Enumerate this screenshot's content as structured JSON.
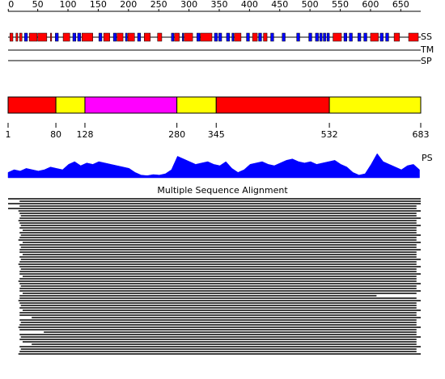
{
  "ruler": {
    "ticks": [
      0,
      50,
      100,
      150,
      200,
      250,
      300,
      350,
      400,
      450,
      500,
      550,
      600,
      650
    ],
    "length": 683
  },
  "tracks": {
    "ss": "SS",
    "tm": "TM",
    "sp": "SP",
    "ps": "PS"
  },
  "ss": {
    "helix_color": "#ff0000",
    "strand_color": "#0000ff",
    "helices": [
      [
        4,
        9
      ],
      [
        14,
        17
      ],
      [
        20,
        24
      ],
      [
        36,
        49
      ],
      [
        50,
        65
      ],
      [
        71,
        73
      ],
      [
        92,
        103
      ],
      [
        123,
        141
      ],
      [
        159,
        169
      ],
      [
        181,
        191
      ],
      [
        199,
        210
      ],
      [
        226,
        236
      ],
      [
        248,
        255
      ],
      [
        276,
        284
      ],
      [
        292,
        306
      ],
      [
        319,
        338
      ],
      [
        375,
        386
      ],
      [
        405,
        413
      ],
      [
        423,
        429
      ],
      [
        538,
        552
      ],
      [
        600,
        613
      ],
      [
        639,
        648
      ],
      [
        663,
        679
      ]
    ],
    "strands": [
      [
        28,
        33
      ],
      [
        79,
        84
      ],
      [
        108,
        113
      ],
      [
        116,
        121
      ],
      [
        151,
        156
      ],
      [
        175,
        180
      ],
      [
        195,
        198
      ],
      [
        215,
        220
      ],
      [
        271,
        275
      ],
      [
        289,
        291
      ],
      [
        313,
        318
      ],
      [
        342,
        347
      ],
      [
        349,
        354
      ],
      [
        362,
        367
      ],
      [
        371,
        374
      ],
      [
        395,
        400
      ],
      [
        415,
        420
      ],
      [
        435,
        440
      ],
      [
        454,
        459
      ],
      [
        478,
        483
      ],
      [
        498,
        503
      ],
      [
        509,
        514
      ],
      [
        516,
        520
      ],
      [
        522,
        526
      ],
      [
        528,
        532
      ],
      [
        556,
        561
      ],
      [
        565,
        570
      ],
      [
        579,
        584
      ],
      [
        589,
        594
      ],
      [
        616,
        621
      ],
      [
        625,
        630
      ]
    ]
  },
  "domains": {
    "boundaries": [
      1,
      80,
      128,
      280,
      345,
      532,
      683
    ],
    "colors": [
      "#ff0000",
      "#ffff00",
      "#ff00ff",
      "#ffff00",
      "#ff0000",
      "#ffff00"
    ]
  },
  "ps": {
    "step": 10,
    "color": "#0000ff",
    "values": [
      0.2,
      0.3,
      0.25,
      0.35,
      0.3,
      0.25,
      0.3,
      0.4,
      0.35,
      0.3,
      0.5,
      0.6,
      0.45,
      0.55,
      0.5,
      0.6,
      0.55,
      0.5,
      0.45,
      0.4,
      0.35,
      0.2,
      0.1,
      0.08,
      0.12,
      0.1,
      0.15,
      0.3,
      0.8,
      0.7,
      0.6,
      0.5,
      0.55,
      0.6,
      0.5,
      0.45,
      0.6,
      0.35,
      0.2,
      0.3,
      0.5,
      0.55,
      0.6,
      0.5,
      0.45,
      0.55,
      0.65,
      0.7,
      0.6,
      0.55,
      0.6,
      0.5,
      0.55,
      0.6,
      0.65,
      0.5,
      0.4,
      0.2,
      0.1,
      0.15,
      0.5,
      0.9,
      0.6,
      0.5,
      0.4,
      0.3,
      0.45,
      0.5,
      0.3
    ]
  },
  "alignment": {
    "title": "Multiple Sequence Alignment",
    "rows": [
      [
        1,
        683
      ],
      [
        20,
        683
      ],
      [
        1,
        683
      ],
      [
        20,
        676
      ],
      [
        1,
        676
      ],
      [
        18,
        683
      ],
      [
        20,
        676
      ],
      [
        22,
        676
      ],
      [
        20,
        683
      ],
      [
        18,
        676
      ],
      [
        20,
        676
      ],
      [
        22,
        683
      ],
      [
        20,
        676
      ],
      [
        25,
        676
      ],
      [
        20,
        676
      ],
      [
        22,
        683
      ],
      [
        20,
        676
      ],
      [
        18,
        676
      ],
      [
        25,
        683
      ],
      [
        20,
        676
      ],
      [
        22,
        676
      ],
      [
        20,
        683
      ],
      [
        20,
        676
      ],
      [
        25,
        676
      ],
      [
        20,
        676
      ],
      [
        22,
        683
      ],
      [
        20,
        676
      ],
      [
        18,
        676
      ],
      [
        20,
        683
      ],
      [
        22,
        676
      ],
      [
        20,
        676
      ],
      [
        20,
        683
      ],
      [
        25,
        676
      ],
      [
        20,
        676
      ],
      [
        18,
        676
      ],
      [
        20,
        683
      ],
      [
        22,
        676
      ],
      [
        20,
        676
      ],
      [
        20,
        683
      ],
      [
        25,
        676
      ],
      [
        20,
        610
      ],
      [
        20,
        676
      ],
      [
        18,
        683
      ],
      [
        20,
        676
      ],
      [
        22,
        676
      ],
      [
        20,
        676
      ],
      [
        25,
        683
      ],
      [
        20,
        676
      ],
      [
        20,
        676
      ],
      [
        40,
        683
      ],
      [
        20,
        676
      ],
      [
        22,
        676
      ],
      [
        20,
        676
      ],
      [
        18,
        683
      ],
      [
        20,
        676
      ],
      [
        60,
        676
      ],
      [
        20,
        676
      ],
      [
        22,
        683
      ],
      [
        20,
        676
      ],
      [
        25,
        676
      ],
      [
        40,
        676
      ],
      [
        20,
        683
      ],
      [
        22,
        676
      ],
      [
        20,
        676
      ],
      [
        18,
        683
      ]
    ]
  }
}
